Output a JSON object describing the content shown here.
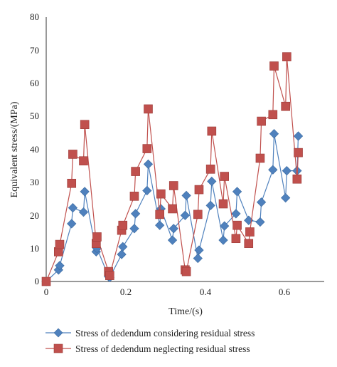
{
  "chart_data": {
    "type": "line",
    "xlabel": "Time/(s)",
    "ylabel": "Equivalent stress/(MPa)",
    "xlim": [
      0,
      0.7
    ],
    "ylim": [
      0,
      80
    ],
    "xticks": [
      "0",
      "0.2",
      "0.4",
      "0.6"
    ],
    "yticks": [
      "0",
      "10",
      "20",
      "30",
      "40",
      "50",
      "60",
      "70",
      "80"
    ],
    "grid": false,
    "legend_position": "bottom",
    "series": [
      {
        "name": "Stress of dedendum considering residual stress",
        "color": "#4f81bd",
        "marker": "diamond",
        "x": [
          0,
          0.031,
          0.034,
          0.064,
          0.067,
          0.094,
          0.097,
          0.126,
          0.128,
          0.157,
          0.16,
          0.19,
          0.193,
          0.222,
          0.225,
          0.254,
          0.257,
          0.286,
          0.289,
          0.318,
          0.321,
          0.35,
          0.353,
          0.382,
          0.385,
          0.414,
          0.417,
          0.446,
          0.449,
          0.478,
          0.481,
          0.51,
          0.539,
          0.542,
          0.571,
          0.574,
          0.603,
          0.606,
          0.632,
          0.635
        ],
        "y": [
          0,
          3.5,
          4.8,
          17.5,
          22.3,
          21,
          27.2,
          9,
          10,
          1.5,
          1.2,
          8.2,
          10.5,
          16,
          20.5,
          27.5,
          35.5,
          17,
          22,
          12.5,
          16,
          20,
          26,
          7,
          9.5,
          23,
          30.3,
          12.5,
          16.8,
          20.5,
          27.2,
          18.5,
          18,
          24,
          33.8,
          44.7,
          25.3,
          33.5,
          33.5,
          44
        ]
      },
      {
        "name": "Stress of dedendum neglecting residual stress",
        "color": "#c0504d",
        "marker": "square",
        "x": [
          0,
          0.031,
          0.034,
          0.064,
          0.067,
          0.094,
          0.097,
          0.126,
          0.128,
          0.157,
          0.16,
          0.19,
          0.193,
          0.222,
          0.225,
          0.254,
          0.257,
          0.286,
          0.289,
          0.318,
          0.321,
          0.35,
          0.353,
          0.382,
          0.385,
          0.414,
          0.417,
          0.446,
          0.449,
          0.478,
          0.481,
          0.51,
          0.513,
          0.539,
          0.542,
          0.571,
          0.574,
          0.603,
          0.606,
          0.632,
          0.635
        ],
        "y": [
          0,
          9,
          11.2,
          29.7,
          38.5,
          36.5,
          47.5,
          11.5,
          13.5,
          3,
          1.8,
          15.5,
          17,
          25.8,
          33.3,
          40.2,
          52.2,
          20.3,
          26.5,
          22,
          29,
          3.5,
          3,
          20.3,
          27.8,
          34,
          45.5,
          23.5,
          31.8,
          13,
          17,
          11.5,
          15,
          37.3,
          48.5,
          50.5,
          65.2,
          53,
          68,
          31,
          39
        ]
      }
    ]
  }
}
